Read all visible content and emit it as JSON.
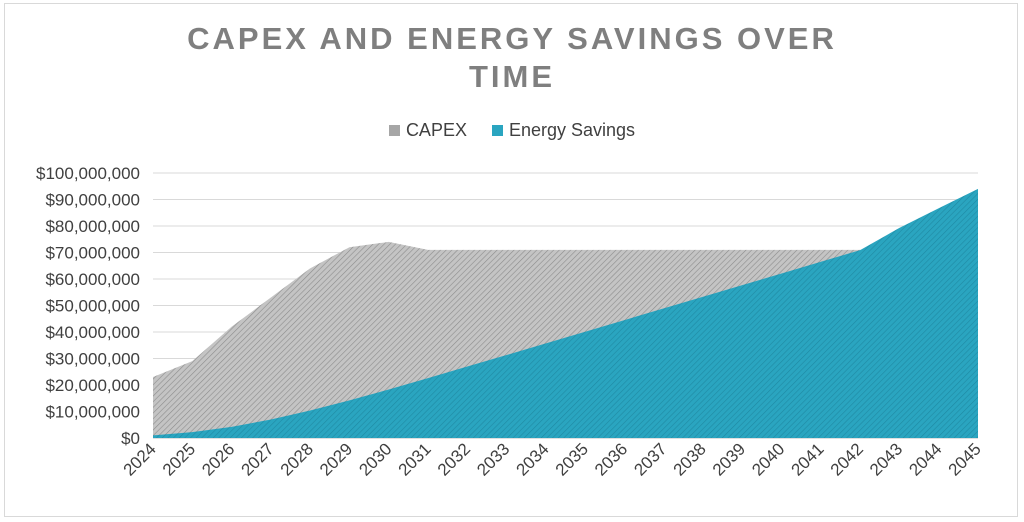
{
  "chart_data": {
    "type": "area",
    "title": "CAPEX AND ENERGY SAVINGS OVER TIME",
    "title_lines": [
      "CAPEX AND ENERGY SAVINGS OVER",
      "TIME"
    ],
    "xlabel": "",
    "ylabel": "",
    "categories": [
      "2024",
      "2025",
      "2026",
      "2027",
      "2028",
      "2029",
      "2030",
      "2031",
      "2032",
      "2033",
      "2034",
      "2035",
      "2036",
      "2037",
      "2038",
      "2039",
      "2040",
      "2041",
      "2042",
      "2043",
      "2044",
      "2045"
    ],
    "y_tick_labels": [
      "$0",
      "$10,000,000",
      "$20,000,000",
      "$30,000,000",
      "$40,000,000",
      "$50,000,000",
      "$60,000,000",
      "$70,000,000",
      "$80,000,000",
      "$90,000,000",
      "$100,000,000"
    ],
    "ylim": [
      0,
      100000000
    ],
    "grid": true,
    "legend_position": "top",
    "series": [
      {
        "name": "CAPEX",
        "color": "#a6a6a6",
        "values": [
          23000000,
          29000000,
          42000000,
          53000000,
          64000000,
          72000000,
          74000000,
          71000000,
          71000000,
          71000000,
          71000000,
          71000000,
          71000000,
          71000000,
          71000000,
          71000000,
          71000000,
          71000000,
          71000000,
          71000000,
          71000000,
          71000000
        ]
      },
      {
        "name": "Energy Savings",
        "color": "#2aa5c0",
        "values": [
          1000000,
          2200000,
          4200000,
          7000000,
          10400000,
          14200000,
          18300000,
          22600000,
          27000000,
          31300000,
          35700000,
          40100000,
          44500000,
          48900000,
          53300000,
          57700000,
          62100000,
          66500000,
          70900000,
          79300000,
          86700000,
          94000000
        ]
      }
    ]
  }
}
